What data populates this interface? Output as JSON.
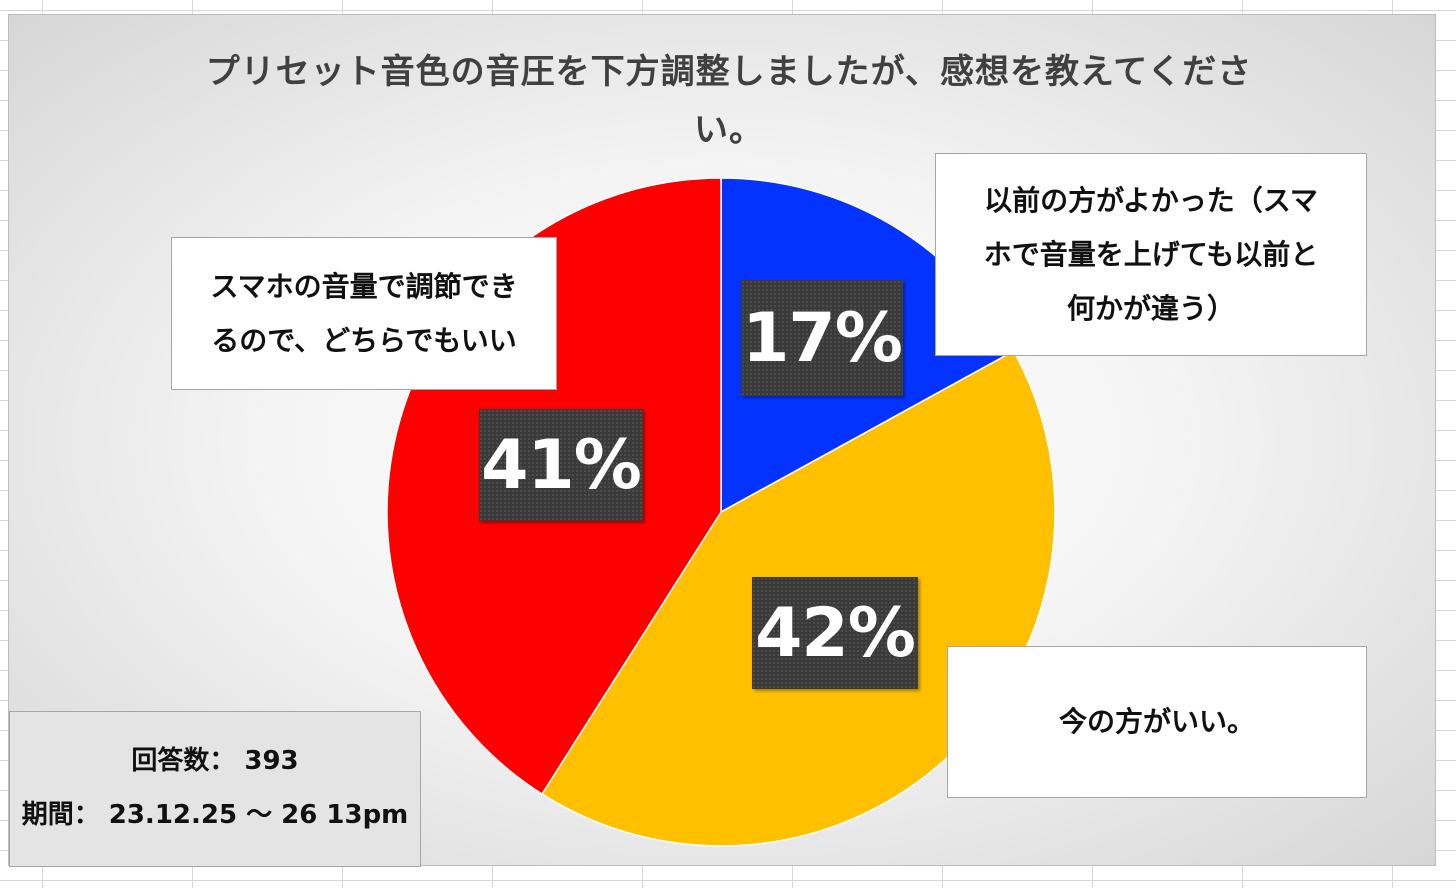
{
  "chart_data": {
    "type": "pie",
    "title": "プリセット音色の音圧を下方調整しましたが、感想を教えてください。",
    "title_lines": [
      "プリセット音色の音圧を下方調整しましたが、感想を教えてくださ",
      "い。"
    ],
    "slices": [
      {
        "label": "以前の方がよかった（スマホで音量を上げても以前と何かが違う）",
        "label_lines": [
          "以前の方がよかった（スマ",
          "ホで音量を上げても以前と",
          "何かが違う）"
        ],
        "value": 17,
        "display": "17%",
        "color": "#0433ff"
      },
      {
        "label": "今の方がいい。",
        "label_lines": [
          "今の方がいい。"
        ],
        "value": 42,
        "display": "42%",
        "color": "#ffc000"
      },
      {
        "label": "スマホの音量で調節できるので、どちらでもいい",
        "label_lines": [
          "スマホの音量で調節でき",
          "るので、どちらでもいい"
        ],
        "value": 41,
        "display": "41%",
        "color": "#ff0000"
      }
    ]
  },
  "info": {
    "responses": "回答数： 393",
    "period": "期間： 23.12.25 〜 26 13pm"
  }
}
